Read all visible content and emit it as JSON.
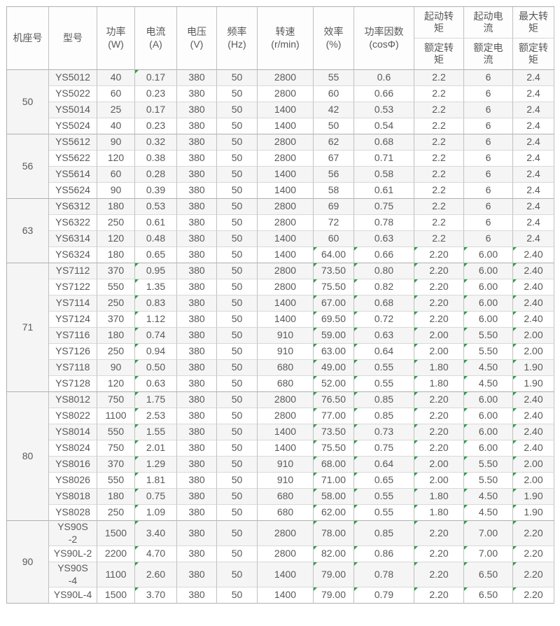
{
  "colors": {
    "marker_green": "#2f9e44",
    "border_dark": "#b0b0b0",
    "border_light": "#d9d9d9",
    "stripe_gray": "#f5f5f5",
    "text_gray": "#595959"
  },
  "table": {
    "columns": [
      {
        "title": "机座号",
        "unit": ""
      },
      {
        "title": "型号",
        "unit": ""
      },
      {
        "title": "功率",
        "unit": "(W)"
      },
      {
        "title": "电流",
        "unit": "(A)"
      },
      {
        "title": "电压",
        "unit": "(V)"
      },
      {
        "title": "频率",
        "unit": "(Hz)"
      },
      {
        "title": "转速",
        "unit": "(r/min)"
      },
      {
        "title": "效率",
        "unit": "(%)"
      },
      {
        "title": "功率因数",
        "unit": "(cosΦ)"
      },
      {
        "top": "起动转矩",
        "bottom": "额定转矩"
      },
      {
        "top": "起动电流",
        "bottom": "额定电流"
      },
      {
        "top": "最大转矩",
        "bottom": "额定转矩"
      }
    ],
    "groups": [
      {
        "frame": "50",
        "rows": [
          {
            "cells": [
              "YS5012",
              "40",
              "0.17",
              "380",
              "50",
              "2800",
              "55",
              "0.6",
              "2.2",
              "6",
              "2.4"
            ],
            "marks": [
              2
            ]
          },
          {
            "cells": [
              "YS5022",
              "60",
              "0.23",
              "380",
              "50",
              "2800",
              "60",
              "0.66",
              "2.2",
              "6",
              "2.4"
            ],
            "marks": []
          },
          {
            "cells": [
              "YS5014",
              "25",
              "0.17",
              "380",
              "50",
              "1400",
              "42",
              "0.53",
              "2.2",
              "6",
              "2.4"
            ],
            "marks": []
          },
          {
            "cells": [
              "YS5024",
              "40",
              "0.23",
              "380",
              "50",
              "1400",
              "50",
              "0.54",
              "2.2",
              "6",
              "2.4"
            ],
            "marks": []
          }
        ]
      },
      {
        "frame": "56",
        "rows": [
          {
            "cells": [
              "YS5612",
              "90",
              "0.32",
              "380",
              "50",
              "2800",
              "62",
              "0.68",
              "2.2",
              "6",
              "2.4"
            ],
            "marks": []
          },
          {
            "cells": [
              "YS5622",
              "120",
              "0.38",
              "380",
              "50",
              "2800",
              "67",
              "0.71",
              "2.2",
              "6",
              "2.4"
            ],
            "marks": []
          },
          {
            "cells": [
              "YS5614",
              "60",
              "0.28",
              "380",
              "50",
              "1400",
              "56",
              "0.58",
              "2.2",
              "6",
              "2.4"
            ],
            "marks": []
          },
          {
            "cells": [
              "YS5624",
              "90",
              "0.39",
              "380",
              "50",
              "1400",
              "58",
              "0.61",
              "2.2",
              "6",
              "2.4"
            ],
            "marks": []
          }
        ]
      },
      {
        "frame": "63",
        "rows": [
          {
            "cells": [
              "YS6312",
              "180",
              "0.53",
              "380",
              "50",
              "2800",
              "69",
              "0.75",
              "2.2",
              "6",
              "2.4"
            ],
            "marks": []
          },
          {
            "cells": [
              "YS6322",
              "250",
              "0.61",
              "380",
              "50",
              "2800",
              "72",
              "0.78",
              "2.2",
              "6",
              "2.4"
            ],
            "marks": []
          },
          {
            "cells": [
              "YS6314",
              "120",
              "0.48",
              "380",
              "50",
              "1400",
              "60",
              "0.63",
              "2.2",
              "6",
              "2.4"
            ],
            "marks": []
          },
          {
            "cells": [
              "YS6324",
              "180",
              "0.65",
              "380",
              "50",
              "1400",
              "64.00",
              "0.66",
              "2.20",
              "6.00",
              "2.40"
            ],
            "marks": [
              6,
              7,
              8,
              9,
              10
            ]
          }
        ]
      },
      {
        "frame": "71",
        "rows": [
          {
            "cells": [
              "YS7112",
              "370",
              "0.95",
              "380",
              "50",
              "2800",
              "73.50",
              "0.80",
              "2.20",
              "6.00",
              "2.40"
            ],
            "marks": [
              2,
              6,
              7,
              8,
              9,
              10
            ]
          },
          {
            "cells": [
              "YS7122",
              "550",
              "1.35",
              "380",
              "50",
              "2800",
              "75.50",
              "0.82",
              "2.20",
              "6.00",
              "2.40"
            ],
            "marks": [
              2,
              6,
              7,
              8,
              9,
              10
            ]
          },
          {
            "cells": [
              "YS7114",
              "250",
              "0.83",
              "380",
              "50",
              "1400",
              "67.00",
              "0.68",
              "2.20",
              "6.00",
              "2.40"
            ],
            "marks": [
              2,
              6,
              7,
              8,
              9,
              10
            ]
          },
          {
            "cells": [
              "YS7124",
              "370",
              "1.12",
              "380",
              "50",
              "1400",
              "69.50",
              "0.72",
              "2.20",
              "6.00",
              "2.40"
            ],
            "marks": [
              2,
              6,
              7,
              8,
              9,
              10
            ]
          },
          {
            "cells": [
              "YS7116",
              "180",
              "0.74",
              "380",
              "50",
              "910",
              "59.00",
              "0.63",
              "2.00",
              "5.50",
              "2.00"
            ],
            "marks": [
              2,
              6,
              7,
              8,
              9,
              10
            ]
          },
          {
            "cells": [
              "YS7126",
              "250",
              "0.94",
              "380",
              "50",
              "910",
              "63.00",
              "0.64",
              "2.00",
              "5.50",
              "2.00"
            ],
            "marks": [
              2,
              6,
              7,
              8,
              9,
              10
            ]
          },
          {
            "cells": [
              "YS7118",
              "90",
              "0.50",
              "380",
              "50",
              "680",
              "49.00",
              "0.55",
              "1.80",
              "4.50",
              "1.90"
            ],
            "marks": [
              2,
              6,
              7,
              8,
              9,
              10
            ]
          },
          {
            "cells": [
              "YS7128",
              "120",
              "0.63",
              "380",
              "50",
              "680",
              "52.00",
              "0.55",
              "1.80",
              "4.50",
              "1.90"
            ],
            "marks": [
              2,
              6,
              7,
              8,
              9,
              10
            ]
          }
        ]
      },
      {
        "frame": "80",
        "rows": [
          {
            "cells": [
              "YS8012",
              "750",
              "1.75",
              "380",
              "50",
              "2800",
              "76.50",
              "0.85",
              "2.20",
              "6.00",
              "2.40"
            ],
            "marks": [
              2,
              6,
              7,
              8,
              9,
              10
            ]
          },
          {
            "cells": [
              "YS8022",
              "1100",
              "2.53",
              "380",
              "50",
              "2800",
              "77.00",
              "0.85",
              "2.20",
              "6.00",
              "2.40"
            ],
            "marks": [
              2,
              6,
              7,
              8,
              9,
              10
            ]
          },
          {
            "cells": [
              "YS8014",
              "550",
              "1.55",
              "380",
              "50",
              "1400",
              "73.50",
              "0.73",
              "2.20",
              "6.00",
              "2.40"
            ],
            "marks": [
              2,
              6,
              7,
              8,
              9,
              10
            ]
          },
          {
            "cells": [
              "YS8024",
              "750",
              "2.01",
              "380",
              "50",
              "1400",
              "75.50",
              "0.75",
              "2.20",
              "6.00",
              "2.40"
            ],
            "marks": [
              2,
              6,
              7,
              8,
              9,
              10
            ]
          },
          {
            "cells": [
              "YS8016",
              "370",
              "1.29",
              "380",
              "50",
              "910",
              "68.00",
              "0.64",
              "2.00",
              "5.50",
              "2.00"
            ],
            "marks": [
              2,
              6,
              7,
              8,
              9,
              10
            ]
          },
          {
            "cells": [
              "YS8026",
              "550",
              "1.81",
              "380",
              "50",
              "910",
              "71.00",
              "0.65",
              "2.00",
              "5.50",
              "2.00"
            ],
            "marks": [
              2,
              6,
              7,
              8,
              9,
              10
            ]
          },
          {
            "cells": [
              "YS8018",
              "180",
              "0.75",
              "380",
              "50",
              "680",
              "58.00",
              "0.55",
              "1.80",
              "4.50",
              "1.90"
            ],
            "marks": [
              2,
              6,
              7,
              8,
              9,
              10
            ]
          },
          {
            "cells": [
              "YS8028",
              "250",
              "1.09",
              "380",
              "50",
              "680",
              "62.00",
              "0.55",
              "1.80",
              "4.50",
              "1.90"
            ],
            "marks": [
              2,
              6,
              7,
              8,
              9,
              10
            ]
          }
        ]
      },
      {
        "frame": "90",
        "rows": [
          {
            "cells": [
              "YS90S-2",
              "1500",
              "3.40",
              "380",
              "50",
              "2800",
              "78.00",
              "0.85",
              "2.20",
              "7.00",
              "2.20"
            ],
            "marks": [
              2,
              6,
              7,
              8,
              9,
              10
            ],
            "tall": true
          },
          {
            "cells": [
              "YS90L-2",
              "2200",
              "4.70",
              "380",
              "50",
              "2800",
              "82.00",
              "0.86",
              "2.20",
              "7.00",
              "2.20"
            ],
            "marks": [
              2,
              6,
              7,
              8,
              9,
              10
            ]
          },
          {
            "cells": [
              "YS90S-4",
              "1100",
              "2.60",
              "380",
              "50",
              "1400",
              "79.00",
              "0.78",
              "2.20",
              "6.50",
              "2.20"
            ],
            "marks": [
              2,
              6,
              7,
              8,
              9,
              10
            ],
            "tall": true
          },
          {
            "cells": [
              "YS90L-4",
              "1500",
              "3.70",
              "380",
              "50",
              "1400",
              "79.00",
              "0.79",
              "2.20",
              "6.50",
              "2.20"
            ],
            "marks": [
              2,
              6,
              7,
              8,
              9,
              10
            ]
          }
        ]
      }
    ]
  }
}
